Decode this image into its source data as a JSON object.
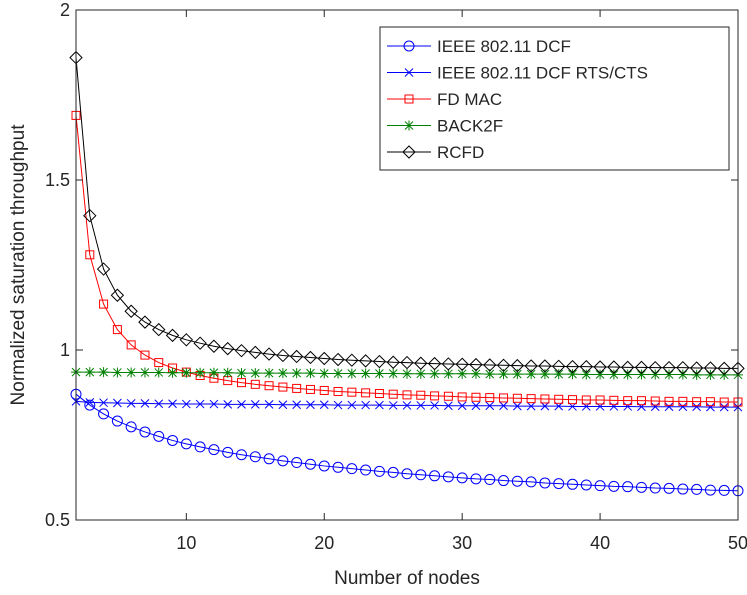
{
  "chart_data": {
    "type": "line",
    "title": "",
    "xlabel": "Number of nodes",
    "ylabel": "Normalized saturation throughput",
    "xlim": [
      2,
      50
    ],
    "ylim": [
      0.5,
      2
    ],
    "xticks": [
      10,
      20,
      30,
      40,
      50
    ],
    "yticks": [
      0.5,
      1,
      1.5,
      2
    ],
    "ytick_labels": [
      "0.5",
      "1",
      "1.5",
      "2"
    ],
    "legend_position": "top-right",
    "x": [
      2,
      3,
      4,
      5,
      6,
      7,
      8,
      9,
      10,
      11,
      12,
      13,
      14,
      15,
      16,
      17,
      18,
      19,
      20,
      21,
      22,
      23,
      24,
      25,
      26,
      27,
      28,
      29,
      30,
      31,
      32,
      33,
      34,
      35,
      36,
      37,
      38,
      39,
      40,
      41,
      42,
      43,
      44,
      45,
      46,
      47,
      48,
      49,
      50
    ],
    "series": [
      {
        "name": "IEEE 802.11 DCF",
        "color": "#0000ff",
        "marker": "circle",
        "values": [
          0.87,
          0.838,
          0.812,
          0.791,
          0.774,
          0.759,
          0.746,
          0.734,
          0.724,
          0.715,
          0.707,
          0.699,
          0.692,
          0.686,
          0.68,
          0.674,
          0.669,
          0.664,
          0.659,
          0.655,
          0.651,
          0.647,
          0.643,
          0.64,
          0.636,
          0.633,
          0.63,
          0.627,
          0.624,
          0.621,
          0.619,
          0.616,
          0.614,
          0.612,
          0.609,
          0.607,
          0.605,
          0.603,
          0.601,
          0.599,
          0.598,
          0.596,
          0.594,
          0.593,
          0.591,
          0.59,
          0.588,
          0.587,
          0.586
        ]
      },
      {
        "name": "IEEE 802.11 DCF RTS/CTS",
        "color": "#0000ff",
        "marker": "x",
        "values": [
          0.849,
          0.846,
          0.845,
          0.844,
          0.843,
          0.843,
          0.842,
          0.842,
          0.841,
          0.841,
          0.841,
          0.84,
          0.84,
          0.84,
          0.84,
          0.839,
          0.839,
          0.839,
          0.839,
          0.838,
          0.838,
          0.838,
          0.838,
          0.837,
          0.837,
          0.837,
          0.837,
          0.836,
          0.836,
          0.836,
          0.836,
          0.836,
          0.835,
          0.835,
          0.835,
          0.835,
          0.834,
          0.834,
          0.834,
          0.834,
          0.834,
          0.833,
          0.833,
          0.833,
          0.833,
          0.833,
          0.832,
          0.832,
          0.832
        ]
      },
      {
        "name": "FD MAC",
        "color": "#ff0000",
        "marker": "square",
        "values": [
          1.69,
          1.28,
          1.135,
          1.06,
          1.015,
          0.985,
          0.963,
          0.947,
          0.935,
          0.925,
          0.917,
          0.91,
          0.904,
          0.899,
          0.895,
          0.891,
          0.887,
          0.884,
          0.881,
          0.878,
          0.876,
          0.874,
          0.872,
          0.87,
          0.868,
          0.867,
          0.865,
          0.864,
          0.862,
          0.861,
          0.86,
          0.859,
          0.858,
          0.857,
          0.856,
          0.855,
          0.854,
          0.853,
          0.853,
          0.852,
          0.851,
          0.851,
          0.85,
          0.849,
          0.849,
          0.848,
          0.848,
          0.847,
          0.847
        ]
      },
      {
        "name": "BACK2F",
        "color": "#008000",
        "marker": "asterisk",
        "values": [
          0.935,
          0.935,
          0.935,
          0.934,
          0.934,
          0.934,
          0.934,
          0.933,
          0.933,
          0.933,
          0.933,
          0.933,
          0.932,
          0.932,
          0.932,
          0.932,
          0.932,
          0.932,
          0.931,
          0.931,
          0.931,
          0.931,
          0.931,
          0.931,
          0.93,
          0.93,
          0.93,
          0.93,
          0.93,
          0.93,
          0.929,
          0.929,
          0.929,
          0.929,
          0.929,
          0.929,
          0.929,
          0.928,
          0.928,
          0.928,
          0.928,
          0.928,
          0.928,
          0.928,
          0.928,
          0.927,
          0.927,
          0.927,
          0.927
        ]
      },
      {
        "name": "RCFD",
        "color": "#000000",
        "marker": "diamond",
        "values": [
          1.86,
          1.395,
          1.238,
          1.161,
          1.114,
          1.082,
          1.06,
          1.043,
          1.03,
          1.02,
          1.011,
          1.004,
          0.998,
          0.993,
          0.988,
          0.984,
          0.981,
          0.978,
          0.975,
          0.972,
          0.97,
          0.968,
          0.966,
          0.964,
          0.963,
          0.961,
          0.96,
          0.959,
          0.958,
          0.957,
          0.956,
          0.955,
          0.954,
          0.953,
          0.953,
          0.952,
          0.951,
          0.951,
          0.95,
          0.95,
          0.949,
          0.949,
          0.948,
          0.948,
          0.948,
          0.947,
          0.947,
          0.946,
          0.946
        ]
      }
    ]
  }
}
